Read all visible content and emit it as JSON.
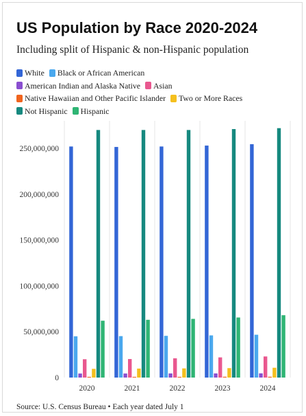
{
  "title": "US Population by Race 2020-2024",
  "subtitle": "Including split of Hispanic & non-Hispanic population",
  "source": "Source: U.S. Census Bureau • Each year dated July 1",
  "colors": {
    "White": "#3366d6",
    "Black or African American": "#4aa8ee",
    "American Indian and Alaska Native": "#8a4fd0",
    "Asian": "#e9588f",
    "Native Hawaiian and Other Pacific Islander": "#f0641e",
    "Two or More Races": "#f5c01e",
    "Not Hispanic": "#16897f",
    "Hispanic": "#2fb574"
  },
  "legend_rows": [
    [
      "White",
      "Black or African American"
    ],
    [
      "American Indian and Alaska Native",
      "Asian"
    ],
    [
      "Native Hawaiian and Other Pacific Islander",
      "Two or More Races"
    ],
    [
      "Not Hispanic",
      "Hispanic"
    ]
  ],
  "chart_data": {
    "type": "bar",
    "categories": [
      "2020",
      "2021",
      "2022",
      "2023",
      "2024"
    ],
    "series": [
      {
        "name": "White",
        "values": [
          252000000,
          251500000,
          252000000,
          253000000,
          254500000
        ]
      },
      {
        "name": "Black or African American",
        "values": [
          45000000,
          45200000,
          45500000,
          46000000,
          46700000
        ]
      },
      {
        "name": "American Indian and Alaska Native",
        "values": [
          4400000,
          4400000,
          4500000,
          4500000,
          4600000
        ]
      },
      {
        "name": "Asian",
        "values": [
          20000000,
          20200000,
          21000000,
          22000000,
          23000000
        ]
      },
      {
        "name": "Native Hawaiian and Other Pacific Islander",
        "values": [
          800000,
          800000,
          800000,
          900000,
          900000
        ]
      },
      {
        "name": "Two or More Races",
        "values": [
          9500000,
          9800000,
          10000000,
          10300000,
          10700000
        ]
      },
      {
        "name": "Not Hispanic",
        "values": [
          270000000,
          270000000,
          270000000,
          271000000,
          272000000
        ]
      },
      {
        "name": "Hispanic",
        "values": [
          62000000,
          63000000,
          64000000,
          65500000,
          68000000
        ]
      }
    ],
    "y_ticks": [
      0,
      50000000,
      100000000,
      150000000,
      200000000,
      250000000
    ],
    "y_tick_labels": [
      "0",
      "50,000,000",
      "100,000,000",
      "150,000,000",
      "200,000,000",
      "250,000,000"
    ],
    "ylim": [
      0,
      280000000
    ],
    "grid": "x-only",
    "legend_position": "top"
  }
}
